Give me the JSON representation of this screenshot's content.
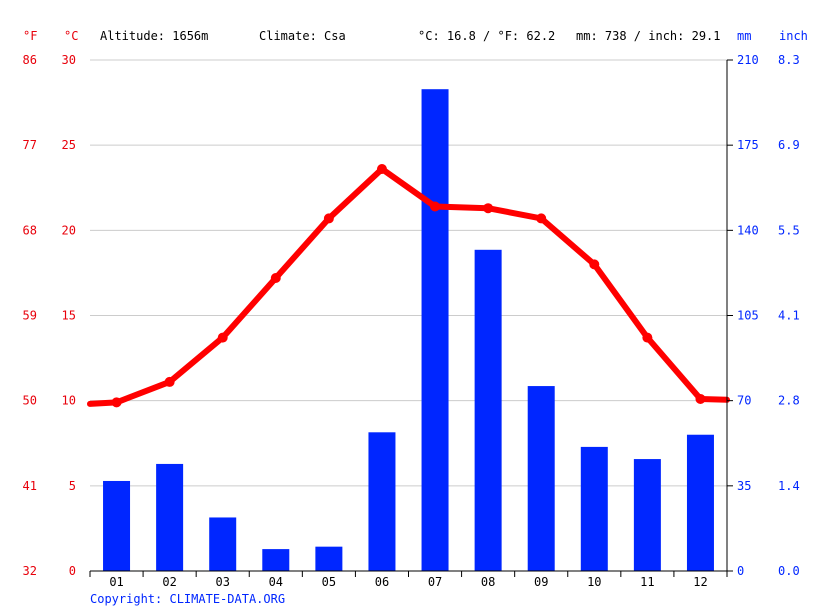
{
  "header": {
    "unit_f": "°F",
    "unit_c": "°C",
    "altitude": "Altitude: 1656m",
    "climate": "Climate: Csa",
    "temp_avg": "°C: 16.8 / °F: 62.2",
    "precip_total": "mm: 738 / inch: 29.1",
    "unit_mm": "mm",
    "unit_inch": "inch"
  },
  "copyright": "Copyright: CLIMATE-DATA.ORG",
  "colors": {
    "temperature": "#ff0000",
    "precipitation": "#0026ff",
    "axis_red": "#e8000b",
    "grid": "#cccccc"
  },
  "chart_data": {
    "type": "bar",
    "categories": [
      "01",
      "02",
      "03",
      "04",
      "05",
      "06",
      "07",
      "08",
      "09",
      "10",
      "11",
      "12"
    ],
    "series": [
      {
        "name": "precipitation",
        "type": "bar",
        "unit": "mm",
        "axis": "right",
        "values": [
          37,
          44,
          22,
          9,
          10,
          57,
          198,
          132,
          76,
          51,
          46,
          56
        ]
      },
      {
        "name": "temperature",
        "type": "line",
        "unit": "°C",
        "axis": "left",
        "values": [
          9.9,
          11.1,
          13.7,
          17.2,
          20.7,
          23.6,
          21.4,
          21.3,
          20.7,
          18.0,
          13.7,
          10.1
        ]
      }
    ],
    "y_left_celsius": {
      "ylim": [
        0,
        30
      ],
      "ticks": [
        0,
        5,
        10,
        15,
        20,
        25,
        30
      ]
    },
    "y_left_fahrenheit": {
      "ticks": [
        32,
        41,
        50,
        59,
        68,
        77,
        86
      ]
    },
    "y_right_mm": {
      "ylim": [
        0,
        210
      ],
      "ticks": [
        0,
        35,
        70,
        105,
        140,
        175,
        210
      ]
    },
    "y_right_inch": {
      "ticks": [
        "0.0",
        "1.4",
        "2.8",
        "4.1",
        "5.5",
        "6.9",
        "8.3"
      ]
    },
    "grid": true
  }
}
